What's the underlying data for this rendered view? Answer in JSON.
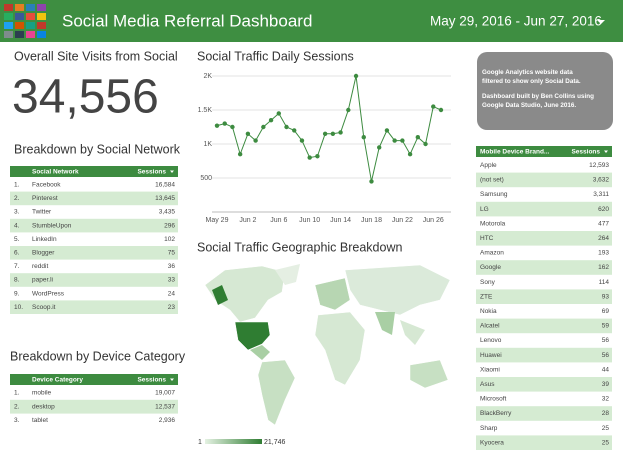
{
  "header": {
    "title": "Social Media Referral Dashboard",
    "date_range": "May 29, 2016 - Jun 27, 2016"
  },
  "kpi": {
    "title": "Overall Site Visits from Social",
    "value": "34,556"
  },
  "social_table": {
    "title": "Breakdown by Social Network",
    "columns": [
      "Social Network",
      "Sessions"
    ],
    "rows": [
      [
        "1.",
        "Facebook",
        "16,584"
      ],
      [
        "2.",
        "Pinterest",
        "13,645"
      ],
      [
        "3.",
        "Twitter",
        "3,435"
      ],
      [
        "4.",
        "StumbleUpon",
        "296"
      ],
      [
        "5.",
        "LinkedIn",
        "102"
      ],
      [
        "6.",
        "Blogger",
        "75"
      ],
      [
        "7.",
        "reddit",
        "36"
      ],
      [
        "8.",
        "paper.li",
        "33"
      ],
      [
        "9.",
        "WordPress",
        "24"
      ],
      [
        "10.",
        "Scoop.it",
        "23"
      ]
    ]
  },
  "device_table": {
    "title": "Breakdown by Device Category",
    "columns": [
      "Device Category",
      "Sessions"
    ],
    "rows": [
      [
        "1.",
        "mobile",
        "19,007"
      ],
      [
        "2.",
        "desktop",
        "12,537"
      ],
      [
        "3.",
        "tablet",
        "2,936"
      ]
    ]
  },
  "note": {
    "lines": [
      "Google Analytics website data filtered to show only Social Data.",
      "Dashboard built by Ben Collins using Google Data Studio, June 2016."
    ]
  },
  "mobile_table": {
    "columns": [
      "Mobile Device Brand...",
      "Sessions"
    ],
    "rows": [
      [
        "Apple",
        "12,593"
      ],
      [
        "(not set)",
        "3,632"
      ],
      [
        "Samsung",
        "3,311"
      ],
      [
        "LG",
        "620"
      ],
      [
        "Motorola",
        "477"
      ],
      [
        "HTC",
        "264"
      ],
      [
        "Amazon",
        "193"
      ],
      [
        "Google",
        "162"
      ],
      [
        "Sony",
        "114"
      ],
      [
        "ZTE",
        "93"
      ],
      [
        "Nokia",
        "69"
      ],
      [
        "Alcatel",
        "59"
      ],
      [
        "Lenovo",
        "56"
      ],
      [
        "Huawei",
        "56"
      ],
      [
        "Xiaomi",
        "44"
      ],
      [
        "Asus",
        "39"
      ],
      [
        "Microsoft",
        "32"
      ],
      [
        "BlackBerry",
        "28"
      ],
      [
        "Sharp",
        "25"
      ],
      [
        "Kyocera",
        "25"
      ]
    ]
  },
  "daily_sessions": {
    "type": "line",
    "title": "Social Traffic Daily Sessions",
    "color": "#3d8b40",
    "x": [
      "May 29",
      null,
      null,
      null,
      "Jun 2",
      null,
      null,
      null,
      "Jun 6",
      null,
      null,
      null,
      "Jun 10",
      null,
      null,
      null,
      "Jun 14",
      null,
      null,
      null,
      "Jun 18",
      null,
      null,
      null,
      "Jun 22",
      null,
      null,
      null,
      "Jun 26",
      null
    ],
    "values": [
      1270,
      1300,
      1250,
      850,
      1150,
      1050,
      1250,
      1350,
      1450,
      1250,
      1200,
      1050,
      800,
      820,
      1150,
      1150,
      1170,
      1500,
      2000,
      1100,
      450,
      950,
      1200,
      1050,
      1050,
      850,
      1100,
      1000,
      1550,
      1500
    ],
    "ylim": [
      0,
      2000
    ],
    "yticks": [
      500,
      {
        "value": 1000,
        "label": "1K"
      },
      {
        "value": 1500,
        "label": "1.5K"
      },
      {
        "value": 2000,
        "label": "2K"
      }
    ]
  },
  "geo_map": {
    "title": "Social Traffic Geographic Breakdown",
    "legend": [
      "1",
      "21,746"
    ]
  }
}
